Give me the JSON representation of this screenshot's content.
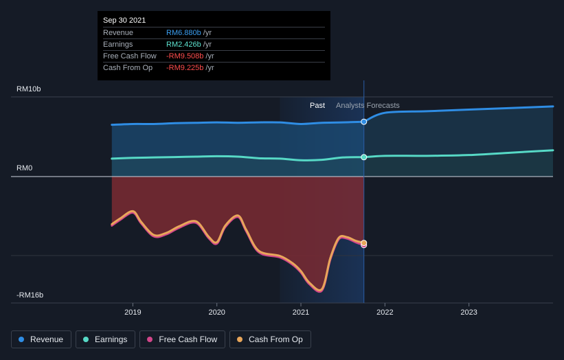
{
  "tooltip": {
    "date": "Sep 30 2021",
    "rows": [
      {
        "label": "Revenue",
        "value": "RM6.880b",
        "unit": "/yr",
        "color": "#3b9ef0"
      },
      {
        "label": "Earnings",
        "value": "RM2.426b",
        "unit": "/yr",
        "color": "#5ee3d0"
      },
      {
        "label": "Free Cash Flow",
        "value": "-RM9.508b",
        "unit": "/yr",
        "color": "#ff4d4d"
      },
      {
        "label": "Cash From Op",
        "value": "-RM9.225b",
        "unit": "/yr",
        "color": "#ff4d4d"
      }
    ]
  },
  "labels": {
    "past": "Past",
    "forecast": "Analysts Forecasts"
  },
  "legend": [
    {
      "label": "Revenue",
      "color": "#2f8de4"
    },
    {
      "label": "Earnings",
      "color": "#57d9c6"
    },
    {
      "label": "Free Cash Flow",
      "color": "#d2468a"
    },
    {
      "label": "Cash From Op",
      "color": "#e8a65a"
    }
  ],
  "chart_data": {
    "type": "line",
    "title": "",
    "xlabel": "",
    "ylabel": "",
    "y_tick_labels": [
      "RM10b",
      "RM0",
      "-RM16b"
    ],
    "y_tick_values": [
      10,
      0,
      -16
    ],
    "ylim": [
      -16,
      10
    ],
    "x_tick_labels": [
      "2019",
      "2020",
      "2021",
      "2022",
      "2023"
    ],
    "x_tick_values": [
      2019,
      2020,
      2021,
      2022,
      2023
    ],
    "xlim": [
      2017.55,
      2024.0
    ],
    "past_end": 2021.75,
    "past_highlight_start": 2020.75,
    "series": [
      {
        "name": "Revenue",
        "color": "#2f8de4",
        "x": [
          2018.75,
          2019.0,
          2019.25,
          2019.5,
          2019.75,
          2020.0,
          2020.25,
          2020.5,
          2020.75,
          2021.0,
          2021.25,
          2021.5,
          2021.75
        ],
        "values": [
          6.5,
          6.6,
          6.6,
          6.7,
          6.75,
          6.8,
          6.75,
          6.8,
          6.8,
          6.6,
          6.75,
          6.8,
          6.88
        ]
      },
      {
        "name": "Revenue Forecast",
        "color": "#2f8de4",
        "x": [
          2021.75,
          2022.0,
          2022.5,
          2023.0,
          2023.5,
          2024.0
        ],
        "values": [
          6.88,
          8.0,
          8.2,
          8.4,
          8.6,
          8.8
        ]
      },
      {
        "name": "Earnings",
        "color": "#57d9c6",
        "x": [
          2018.75,
          2019.0,
          2019.25,
          2019.5,
          2019.75,
          2020.0,
          2020.25,
          2020.5,
          2020.75,
          2021.0,
          2021.25,
          2021.5,
          2021.75
        ],
        "values": [
          2.25,
          2.35,
          2.4,
          2.45,
          2.5,
          2.55,
          2.5,
          2.3,
          2.25,
          2.05,
          2.1,
          2.4,
          2.43
        ]
      },
      {
        "name": "Earnings Forecast",
        "color": "#57d9c6",
        "x": [
          2021.75,
          2022.0,
          2022.5,
          2023.0,
          2023.5,
          2024.0
        ],
        "values": [
          2.43,
          2.6,
          2.6,
          2.7,
          3.0,
          3.3
        ]
      },
      {
        "name": "Free Cash Flow",
        "color": "#d2468a",
        "x": [
          2018.75,
          2018.85,
          2019.0,
          2019.1,
          2019.25,
          2019.4,
          2019.55,
          2019.75,
          2019.9,
          2020.0,
          2020.1,
          2020.25,
          2020.35,
          2020.5,
          2020.75,
          2020.9,
          2021.0,
          2021.1,
          2021.25,
          2021.35,
          2021.45,
          2021.55,
          2021.65,
          2021.75
        ],
        "values": [
          -6.8,
          -6.0,
          -5.0,
          -6.5,
          -8.3,
          -8.0,
          -7.1,
          -6.4,
          -8.5,
          -9.3,
          -7.0,
          -5.6,
          -7.6,
          -10.5,
          -11.2,
          -12.2,
          -13.3,
          -14.9,
          -15.8,
          -11.5,
          -8.7,
          -8.6,
          -9.1,
          -9.5
        ]
      },
      {
        "name": "Cash From Op",
        "color": "#e8a65a",
        "x": [
          2018.75,
          2018.85,
          2019.0,
          2019.1,
          2019.25,
          2019.4,
          2019.55,
          2019.75,
          2019.9,
          2020.0,
          2020.1,
          2020.25,
          2020.35,
          2020.5,
          2020.75,
          2020.9,
          2021.0,
          2021.1,
          2021.25,
          2021.35,
          2021.45,
          2021.55,
          2021.65,
          2021.75
        ],
        "values": [
          -6.6,
          -5.8,
          -4.8,
          -6.3,
          -8.1,
          -7.8,
          -6.9,
          -6.2,
          -8.3,
          -9.1,
          -6.8,
          -5.4,
          -7.4,
          -10.3,
          -11.0,
          -12.0,
          -13.1,
          -14.7,
          -15.6,
          -11.3,
          -8.5,
          -8.4,
          -8.9,
          -9.2
        ]
      }
    ]
  }
}
